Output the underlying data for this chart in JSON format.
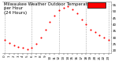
{
  "title": "Milwaukee Weather Outdoor Temperature\nper Hour\n(24 Hours)",
  "hours": [
    0,
    1,
    2,
    3,
    4,
    5,
    6,
    7,
    8,
    9,
    10,
    11,
    12,
    13,
    14,
    15,
    16,
    17,
    18,
    19,
    20,
    21,
    22,
    23
  ],
  "temps": [
    28,
    26,
    24,
    23,
    22,
    21,
    22,
    25,
    30,
    36,
    42,
    47,
    51,
    53,
    54,
    52,
    49,
    44,
    40,
    36,
    34,
    32,
    30,
    28
  ],
  "dot_color": "#ff0000",
  "bg_color": "#ffffff",
  "grid_color": "#aaaaaa",
  "ylim": [
    18,
    58
  ],
  "xlim": [
    -0.5,
    23.5
  ],
  "ytick_vals": [
    20,
    25,
    30,
    35,
    40,
    45,
    50,
    55
  ],
  "ytick_labels": [
    "20",
    "25",
    "30",
    "35",
    "40",
    "45",
    "50",
    "55"
  ],
  "xtick_labels": [
    "0",
    "1",
    "2",
    "3",
    "4",
    "5",
    "6",
    "7",
    "8",
    "9",
    "10",
    "11",
    "12",
    "13",
    "14",
    "15",
    "16",
    "17",
    "18",
    "19",
    "20",
    "21",
    "22",
    "23"
  ],
  "vgrid_x": [
    0,
    6,
    12,
    18,
    23
  ],
  "legend_box_color": "#ff0000",
  "legend_box_edge": "#000000",
  "title_fontsize": 4,
  "tick_fontsize": 3,
  "marker_size": 1.5
}
